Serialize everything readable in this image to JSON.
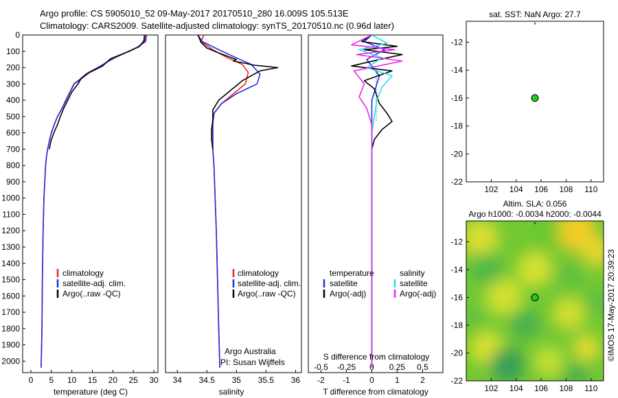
{
  "header": {
    "line1": "Argo profile: CS 5905010_52 09-May-2017 20170510_280 16.009S 105.513E",
    "line2": "Climatology: CARS2009. Satellite-adjusted climatology: synTS_20170510.nc (0.96d later)"
  },
  "colors": {
    "climatology": "#e8251a",
    "satellite": "#1f2ee0",
    "argo": "#000000",
    "salinity_satellite": "#22e0ee",
    "salinity_argo": "#ee22ee",
    "location_marker": "#22cc22"
  },
  "chart_data": [
    {
      "type": "line",
      "name": "temperature-profile",
      "xlabel": "temperature (deg C)",
      "ylabel": "",
      "xlim": [
        -2,
        31
      ],
      "ylim": [
        2070,
        0
      ],
      "xticks": [
        0,
        5,
        10,
        15,
        20,
        25,
        30
      ],
      "xtick_labels": [
        "0",
        "5",
        "10",
        "15",
        "20",
        "25",
        "30"
      ],
      "yticks": [
        0,
        100,
        200,
        300,
        400,
        500,
        600,
        700,
        800,
        900,
        1000,
        1100,
        1200,
        1300,
        1400,
        1500,
        1600,
        1700,
        1800,
        1900,
        2000
      ],
      "ytick_labels": [
        "0",
        "100",
        "200",
        "300",
        "400",
        "500",
        "600",
        "700",
        "800",
        "900",
        "1000",
        "1100",
        "1200",
        "1300",
        "1400",
        "1500",
        "1600",
        "1700",
        "1800",
        "1900",
        "2000"
      ],
      "legend": {
        "entries": [
          "climatology",
          "satellite-adj. clim.",
          "Argo(..raw -QC)"
        ],
        "position": "lower-middle"
      },
      "series": [
        {
          "name": "climatology",
          "color": "#e8251a",
          "x": [
            28,
            27.8,
            26,
            23,
            20.5,
            19,
            17,
            14,
            12,
            10.5,
            9.5,
            8.5,
            7.6,
            6.5,
            5.7,
            5,
            4.5,
            4.1,
            3.8,
            3.6,
            3.4,
            3.2,
            3.0,
            2.8,
            2.7,
            2.5
          ],
          "y": [
            0,
            40,
            75,
            110,
            140,
            160,
            190,
            230,
            270,
            300,
            350,
            400,
            450,
            500,
            550,
            600,
            650,
            700,
            750,
            800,
            900,
            1000,
            1200,
            1500,
            1800,
            2040
          ]
        },
        {
          "name": "satellite-adj. clim.",
          "color": "#1f2ee0",
          "x": [
            28.2,
            28,
            26,
            23,
            20.3,
            19,
            17,
            14.3,
            12.2,
            10.6,
            9.6,
            8.6,
            7.6,
            6.5,
            5.7,
            5,
            4.5,
            4.1,
            3.8,
            3.6,
            3.4,
            3.2,
            3.0,
            2.8,
            2.7,
            2.5
          ],
          "y": [
            0,
            40,
            75,
            110,
            140,
            160,
            190,
            230,
            270,
            300,
            350,
            400,
            450,
            500,
            550,
            600,
            650,
            700,
            750,
            800,
            900,
            1000,
            1200,
            1500,
            1800,
            2040
          ]
        },
        {
          "name": "Argo(..raw -QC)",
          "color": "#000000",
          "x": [
            27.7,
            27.6,
            26.5,
            24,
            21,
            19.5,
            18.8,
            17.5,
            15.5,
            13.5,
            12.3,
            11.5,
            10,
            9,
            8,
            7.2,
            6.5,
            5.6,
            4.9,
            4.5
          ],
          "y": [
            0,
            35,
            70,
            100,
            130,
            145,
            160,
            190,
            215,
            240,
            265,
            300,
            350,
            400,
            450,
            500,
            550,
            600,
            650,
            700
          ]
        }
      ]
    },
    {
      "type": "line",
      "name": "salinity-profile",
      "xlabel": "salinity",
      "xlim": [
        33.8,
        36.1
      ],
      "ylim": [
        2070,
        0
      ],
      "xticks": [
        34,
        34.5,
        35,
        35.5,
        36
      ],
      "xtick_labels": [
        "34",
        "34.5",
        "35",
        "35.5",
        "36"
      ],
      "legend": {
        "entries": [
          "climatology",
          "satellite-adj. clim.",
          "Argo(..raw -QC)"
        ],
        "position": "lower-middle"
      },
      "notes": [
        "Argo Australia",
        "PI: Susan Wijffels"
      ],
      "series": [
        {
          "name": "climatology",
          "color": "#e8251a",
          "x": [
            34.45,
            34.4,
            34.6,
            34.85,
            35.1,
            35.2,
            35.15,
            34.95,
            34.75,
            34.62,
            34.6,
            34.6,
            34.6,
            34.62,
            34.64,
            34.66,
            34.68,
            34.7,
            34.72
          ],
          "y": [
            0,
            40,
            90,
            140,
            180,
            230,
            300,
            360,
            420,
            480,
            540,
            620,
            700,
            800,
            1000,
            1200,
            1500,
            1800,
            2040
          ]
        },
        {
          "name": "satellite-adj. clim.",
          "color": "#1f2ee0",
          "x": [
            34.35,
            34.42,
            34.7,
            35,
            35.25,
            35.4,
            35.35,
            35,
            34.75,
            34.62,
            34.6,
            34.6,
            34.6,
            34.62,
            34.64,
            34.66,
            34.68,
            34.7,
            34.72
          ],
          "y": [
            0,
            40,
            90,
            140,
            180,
            240,
            300,
            360,
            420,
            480,
            540,
            620,
            700,
            800,
            1000,
            1200,
            1500,
            1800,
            2040
          ]
        },
        {
          "name": "Argo(..raw -QC)",
          "color": "#000000",
          "x": [
            34.35,
            34.4,
            34.5,
            34.7,
            35,
            34.95,
            35.1,
            35.3,
            35.7,
            35.4,
            35.1,
            34.9,
            34.7,
            34.6,
            34.6,
            34.58,
            34.58,
            34.6
          ],
          "y": [
            0,
            45,
            80,
            110,
            150,
            160,
            170,
            185,
            200,
            220,
            280,
            340,
            400,
            460,
            520,
            580,
            640,
            700
          ]
        }
      ]
    },
    {
      "type": "line",
      "name": "difference-profile",
      "xlabel": "T difference from climatology",
      "top_label": "S difference from climatology",
      "xlim": [
        -2.5,
        2.8
      ],
      "ylim": [
        2070,
        0
      ],
      "xticks": [
        -2,
        -1,
        0,
        1,
        2
      ],
      "xtick_labels": [
        "-2",
        "-1",
        "0",
        "1",
        "2"
      ],
      "top_xticks": [
        -2,
        -1,
        0,
        1,
        2
      ],
      "top_xtick_labels": [
        "-0.5",
        "-0.25",
        "0",
        "0.25",
        "0.5"
      ],
      "legend": {
        "entries": [
          "temperature",
          "satellite",
          "Argo(-adj)",
          "salinity",
          "satellite",
          "Argo(-adj)"
        ],
        "position": "lower-middle"
      },
      "series": [
        {
          "name": "temperature satellite",
          "color": "#1f2ee0",
          "x": [
            0,
            -0.3,
            0.5,
            -0.2,
            0.3,
            0,
            0,
            0,
            0
          ],
          "y": [
            0,
            40,
            90,
            150,
            250,
            400,
            700,
            1200,
            2040
          ]
        },
        {
          "name": "temperature Argo(-adj)",
          "color": "#000000",
          "x": [
            0,
            -0.4,
            1,
            -0.3,
            1.2,
            0.3,
            -0.8,
            0.8,
            -0.3,
            0.1,
            0.3,
            0.6,
            0.8,
            0.4,
            0.1,
            0,
            0
          ],
          "y": [
            0,
            40,
            70,
            90,
            120,
            150,
            190,
            220,
            280,
            330,
            420,
            480,
            530,
            580,
            640,
            700,
            2040
          ]
        },
        {
          "name": "salinity satellite",
          "color": "#22e0ee",
          "x": [
            0,
            0.6,
            -0.5,
            0.4,
            -0.2,
            0.8,
            0.4,
            0.2,
            0,
            0
          ],
          "y": [
            0,
            50,
            90,
            140,
            200,
            250,
            320,
            400,
            600,
            2040
          ]
        },
        {
          "name": "salinity Argo(-adj)",
          "color": "#ee22ee",
          "x": [
            0,
            -0.8,
            0.9,
            -0.6,
            1.2,
            -0.7,
            -0.3,
            -0.5,
            -0.2,
            0,
            0
          ],
          "y": [
            0,
            60,
            90,
            120,
            160,
            220,
            300,
            380,
            450,
            550,
            2040
          ]
        }
      ]
    },
    {
      "type": "scatter",
      "name": "sst-map",
      "title": "sat. SST: NaN Argo: 27.7",
      "xlim": [
        100,
        111
      ],
      "ylim": [
        -22,
        -10.5
      ],
      "xticks": [
        102,
        104,
        106,
        108,
        110
      ],
      "xtick_labels": [
        "102",
        "104",
        "106",
        "108",
        "110"
      ],
      "yticks": [
        -12,
        -14,
        -16,
        -18,
        -20,
        -22
      ],
      "ytick_labels": [
        "-12",
        "-14",
        "-16",
        "-18",
        "-20",
        "-22"
      ],
      "points": [
        {
          "x": 105.5,
          "y": -10.7,
          "marker": "asterisk"
        },
        {
          "x": 105.5,
          "y": -16.0,
          "marker": "circle",
          "color": "#22cc22"
        }
      ]
    },
    {
      "type": "heatmap",
      "name": "sla-map",
      "title_line1": "Altim. SLA: 0.056",
      "title_line2": "Argo h1000: -0.0034 h2000: -0.0044",
      "xlim": [
        100,
        111
      ],
      "ylim": [
        -22,
        -10.5
      ],
      "xticks": [
        102,
        104,
        106,
        108,
        110
      ],
      "xtick_labels": [
        "102",
        "104",
        "106",
        "108",
        "110"
      ],
      "yticks": [
        -12,
        -14,
        -16,
        -18,
        -20,
        -22
      ],
      "ytick_labels": [
        "-12",
        "-14",
        "-16",
        "-18",
        "-20",
        "-22"
      ],
      "points": [
        {
          "x": 105.5,
          "y": -10.7,
          "marker": "asterisk"
        },
        {
          "x": 105.5,
          "y": -16.0,
          "marker": "circle",
          "color": "#22cc22"
        }
      ]
    }
  ],
  "footer": {
    "side_stamp": "©IMOS 17-May-2017 20:39:23"
  }
}
